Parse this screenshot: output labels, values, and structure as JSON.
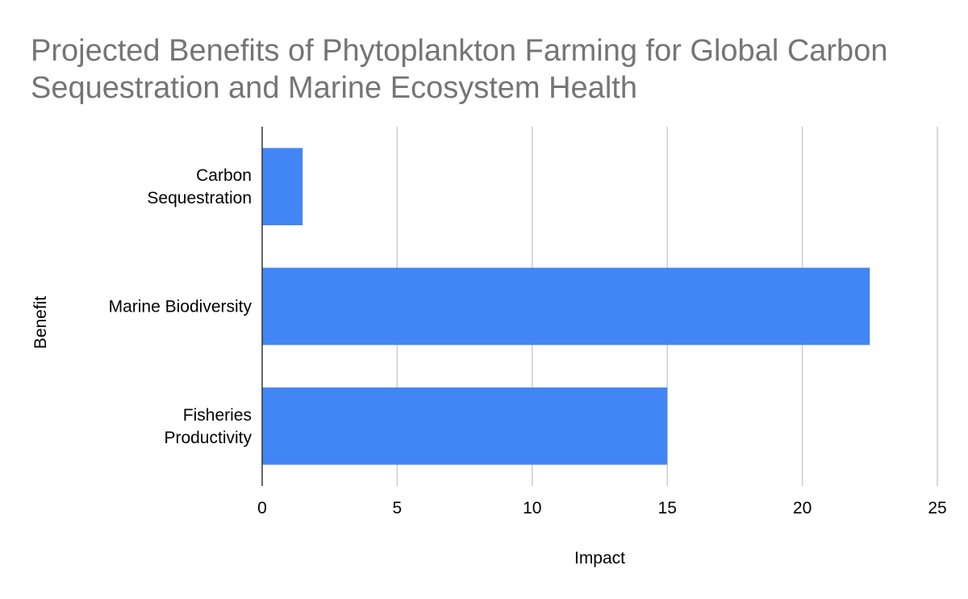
{
  "chart_data": {
    "type": "bar",
    "orientation": "horizontal",
    "title": "Projected Benefits of Phytoplankton Farming for Global Carbon Sequestration and Marine Ecosystem Health",
    "xlabel": "Impact",
    "ylabel": "Benefit",
    "categories": [
      [
        "Carbon",
        "Sequestration"
      ],
      [
        "Marine Biodiversity"
      ],
      [
        "Fisheries",
        "Productivity"
      ]
    ],
    "values": [
      1.5,
      22.5,
      15
    ],
    "xlim": [
      0,
      25
    ],
    "xticks": [
      0,
      5,
      10,
      15,
      20,
      25
    ],
    "grid": "vertical",
    "legend": "none",
    "colors": {
      "bar": "#4285f4",
      "grid": "#cccccc",
      "axis": "#333333"
    }
  }
}
